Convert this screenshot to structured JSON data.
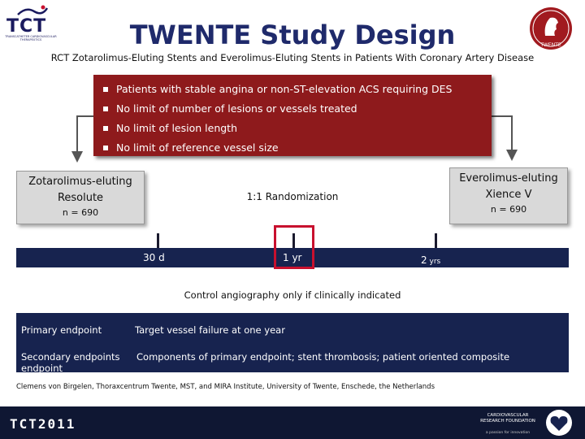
{
  "logo": {
    "wordmark": "TCT",
    "tagline": "TRANSCATHETER CARDIOVASCULAR THERAPEUTICS"
  },
  "header": {
    "title": "TWENTE  Study Design",
    "subtitle": "RCT Zotarolimus-Eluting Stents and Everolimus-Eluting Stents in Patients With Coronary Artery Disease"
  },
  "seal": {
    "label": "TWENTE"
  },
  "criteria": [
    "Patients with stable angina or non-ST-elevation ACS requiring DES",
    "No limit of number of lesions or vessels treated",
    "No limit of lesion length",
    "No limit of reference vessel size"
  ],
  "arms": {
    "left": {
      "line1": "Zotarolimus-eluting",
      "line2": "Resolute",
      "n": "n = 690"
    },
    "right": {
      "line1": "Everolimus-eluting",
      "line2": "Xience V",
      "n": "n = 690"
    }
  },
  "randomization": "1:1  Randomization",
  "timeline": {
    "t1": "30 d",
    "t2": "1 yr",
    "t3_num": "2",
    "t3_unit": " yrs"
  },
  "control_note": "Control angiography only if clinically indicated",
  "endpoints": {
    "primary_label": "Primary endpoint",
    "primary_value": "Target vessel failure at one year",
    "secondary_label": "Secondary endpoints endpoint",
    "secondary_value": "Components of primary endpoint; stent thrombosis;  patient oriented composite"
  },
  "citation": "Clemens von Birgelen, Thoraxcentrum Twente, MST, and MIRA Institute,  University of Twente, Enschede, the Netherlands",
  "footer": {
    "brand": "TCT2011",
    "crf_name": "CARDIOVASCULAR RESEARCH FOUNDATION",
    "crf_tagline": "a passion for innovation"
  },
  "colors": {
    "title": "#1f2a6b",
    "criteria_box": "#8e1a1c",
    "dark_band": "#17234f",
    "highlight": "#c8102e"
  }
}
